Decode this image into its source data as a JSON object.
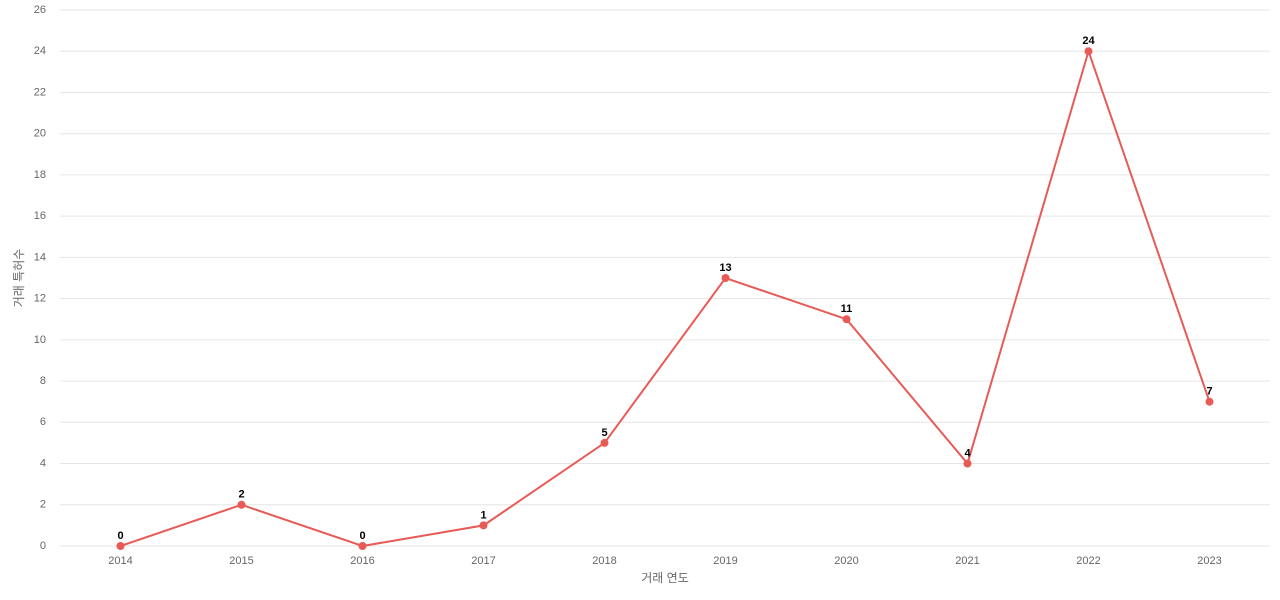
{
  "chart_data": {
    "type": "line",
    "x_label": "거래 연도",
    "y_label": "거래 특허수",
    "categories": [
      "2014",
      "2015",
      "2016",
      "2017",
      "2018",
      "2019",
      "2020",
      "2021",
      "2022",
      "2023"
    ],
    "values": [
      0,
      2,
      0,
      1,
      5,
      13,
      11,
      4,
      24,
      7
    ],
    "color": "#e85a56",
    "ylim": [
      0,
      26
    ],
    "yticks": [
      0,
      2,
      4,
      6,
      8,
      10,
      12,
      14,
      16,
      18,
      20,
      22,
      24,
      26
    ],
    "grid": true
  }
}
